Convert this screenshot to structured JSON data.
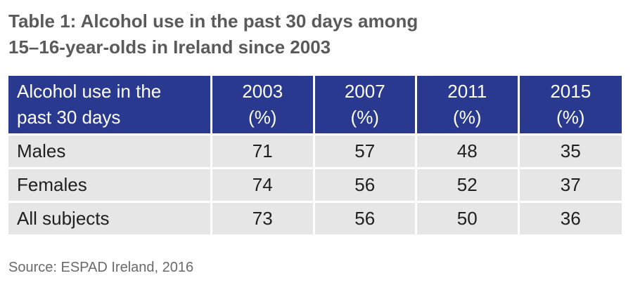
{
  "title": {
    "line1": "Table 1: Alcohol use in the past 30 days among",
    "line2": "15–16-year-olds in Ireland since 2003"
  },
  "table": {
    "header_first": {
      "line1": "Alcohol use in the",
      "line2": "past 30 days"
    },
    "header_years": [
      {
        "year": "2003",
        "unit": "(%)"
      },
      {
        "year": "2007",
        "unit": "(%)"
      },
      {
        "year": "2011",
        "unit": "(%)"
      },
      {
        "year": "2015",
        "unit": "(%)"
      }
    ],
    "rows": [
      {
        "label": "Males",
        "values": [
          "71",
          "57",
          "48",
          "35"
        ]
      },
      {
        "label": "Females",
        "values": [
          "74",
          "56",
          "52",
          "37"
        ]
      },
      {
        "label": "All subjects",
        "values": [
          "73",
          "56",
          "50",
          "36"
        ]
      }
    ]
  },
  "source": "Source: ESPAD Ireland, 2016",
  "colors": {
    "header_bg": "#2a3990",
    "row_bg": "#e6e6e6",
    "title": "#5a5a5a"
  }
}
